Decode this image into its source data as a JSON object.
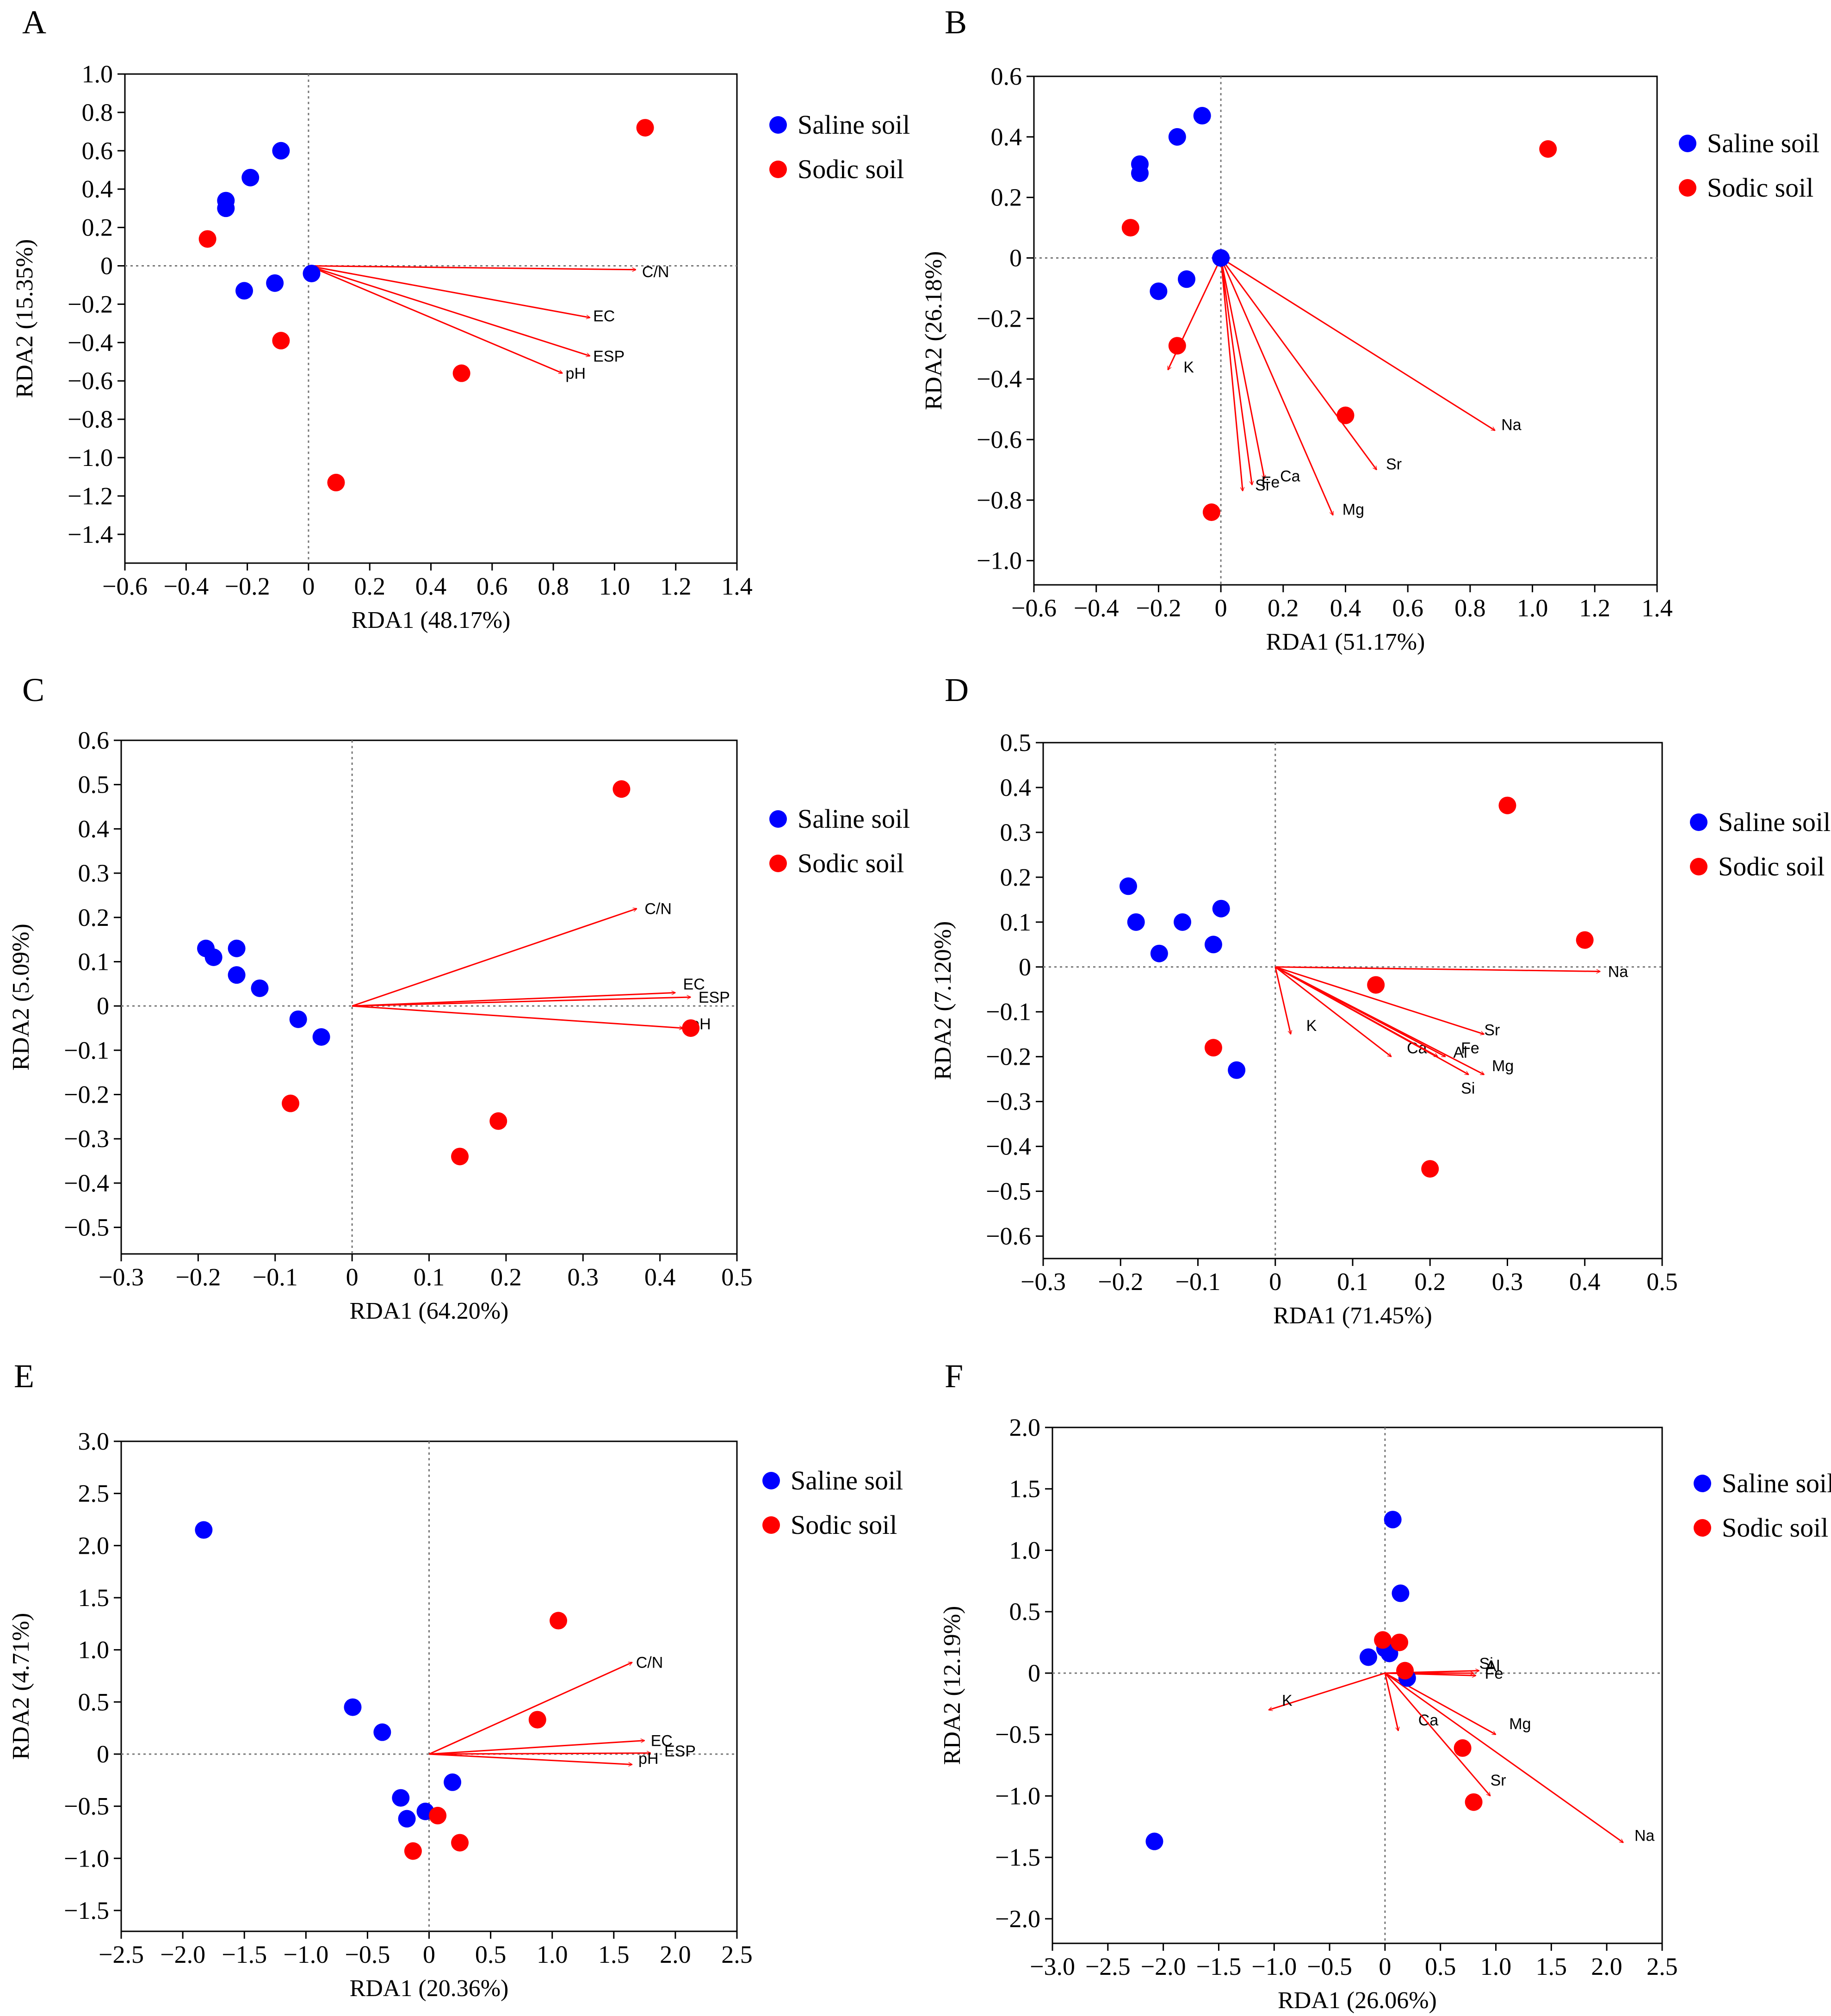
{
  "chart_data": [
    {
      "type": "scatter",
      "panel": "A",
      "xlabel": "RDA1 (48.17%)",
      "ylabel": "RDA2 (15.35%)",
      "xlim": [
        -0.6,
        1.4
      ],
      "ylim": [
        -1.55,
        1.0
      ],
      "xticks": [
        -0.6,
        -0.4,
        -0.2,
        0,
        0.2,
        0.4,
        0.6,
        0.8,
        1.0,
        1.2,
        1.4
      ],
      "xticklabels": [
        "−0.6",
        "−0.4",
        "−0.2",
        "0",
        "0.2",
        "0.4",
        "0.6",
        "0.8",
        "1.0",
        "1.2",
        "1.4"
      ],
      "yticks": [
        1.0,
        0.8,
        0.6,
        0.4,
        0.2,
        0,
        -0.2,
        -0.4,
        -0.6,
        -0.8,
        -1.0,
        -1.2,
        -1.4
      ],
      "yticklabels": [
        "1.0",
        "0.8",
        "0.6",
        "0.4",
        "0.2",
        "0",
        "−0.2",
        "−0.4",
        "−0.6",
        "−0.8",
        "−1.0",
        "−1.2",
        "−1.4"
      ],
      "legend": [
        "Saline soil",
        "Sodic soil"
      ],
      "series": [
        {
          "name": "Saline soil",
          "color": "#0000ff",
          "points": [
            [
              -0.09,
              0.6
            ],
            [
              -0.19,
              0.46
            ],
            [
              -0.27,
              0.34
            ],
            [
              -0.27,
              0.3
            ],
            [
              -0.21,
              -0.13
            ],
            [
              -0.11,
              -0.09
            ],
            [
              0.01,
              -0.04
            ]
          ]
        },
        {
          "name": "Sodic soil",
          "color": "#ff0000",
          "points": [
            [
              1.1,
              0.72
            ],
            [
              -0.33,
              0.14
            ],
            [
              -0.09,
              -0.39
            ],
            [
              0.5,
              -0.56
            ],
            [
              0.09,
              -1.13
            ]
          ]
        }
      ],
      "vectors": [
        {
          "name": "C/N",
          "x": 1.07,
          "y": -0.02,
          "lx": 1.09,
          "ly": -0.03
        },
        {
          "name": "EC",
          "x": 0.92,
          "y": -0.27,
          "lx": 0.93,
          "ly": -0.26
        },
        {
          "name": "ESP",
          "x": 0.92,
          "y": -0.47,
          "lx": 0.93,
          "ly": -0.47
        },
        {
          "name": "pH",
          "x": 0.83,
          "y": -0.56,
          "lx": 0.84,
          "ly": -0.56
        }
      ]
    },
    {
      "type": "scatter",
      "panel": "B",
      "xlabel": "RDA1 (51.17%)",
      "ylabel": "RDA2 (26.18%)",
      "xlim": [
        -0.6,
        1.4
      ],
      "ylim": [
        -1.08,
        0.6
      ],
      "xticks": [
        -0.6,
        -0.4,
        -0.2,
        0,
        0.2,
        0.4,
        0.6,
        0.8,
        1.0,
        1.2,
        1.4
      ],
      "xticklabels": [
        "−0.6",
        "−0.4",
        "−0.2",
        "0",
        "0.2",
        "0.4",
        "0.6",
        "0.8",
        "1.0",
        "1.2",
        "1.4"
      ],
      "yticks": [
        0.6,
        0.4,
        0.2,
        0,
        -0.2,
        -0.4,
        -0.6,
        -0.8,
        -1.0
      ],
      "yticklabels": [
        "0.6",
        "0.4",
        "0.2",
        "0",
        "−0.2",
        "−0.4",
        "−0.6",
        "−0.8",
        "−1.0"
      ],
      "legend": [
        "Saline soil",
        "Sodic soil"
      ],
      "series": [
        {
          "name": "Saline soil",
          "color": "#0000ff",
          "points": [
            [
              -0.06,
              0.47
            ],
            [
              -0.14,
              0.4
            ],
            [
              -0.26,
              0.31
            ],
            [
              -0.26,
              0.28
            ],
            [
              -0.2,
              -0.11
            ],
            [
              -0.11,
              -0.07
            ],
            [
              0.0,
              0.0
            ]
          ]
        },
        {
          "name": "Sodic soil",
          "color": "#ff0000",
          "points": [
            [
              1.05,
              0.36
            ],
            [
              -0.29,
              0.1
            ],
            [
              -0.14,
              -0.29
            ],
            [
              0.4,
              -0.52
            ],
            [
              -0.03,
              -0.84
            ]
          ]
        }
      ],
      "vectors": [
        {
          "name": "K",
          "x": -0.17,
          "y": -0.37,
          "lx": -0.12,
          "ly": -0.36
        },
        {
          "name": "Na",
          "x": 0.88,
          "y": -0.57,
          "lx": 0.9,
          "ly": -0.55
        },
        {
          "name": "Sr",
          "x": 0.5,
          "y": -0.7,
          "lx": 0.53,
          "ly": -0.68
        },
        {
          "name": "Mg",
          "x": 0.36,
          "y": -0.85,
          "lx": 0.39,
          "ly": -0.83
        },
        {
          "name": "Ca",
          "x": 0.14,
          "y": -0.73,
          "lx": 0.19,
          "ly": -0.72
        },
        {
          "name": "Fe",
          "x": 0.1,
          "y": -0.75,
          "lx": 0.13,
          "ly": -0.74
        },
        {
          "name": "Si",
          "x": 0.07,
          "y": -0.77,
          "lx": 0.11,
          "ly": -0.75
        }
      ]
    },
    {
      "type": "scatter",
      "panel": "C",
      "xlabel": "RDA1 (64.20%)",
      "ylabel": "RDA2 (5.09%)",
      "xlim": [
        -0.3,
        0.5
      ],
      "ylim": [
        -0.56,
        0.6
      ],
      "xticks": [
        -0.3,
        -0.2,
        -0.1,
        0,
        0.1,
        0.2,
        0.3,
        0.4,
        0.5
      ],
      "xticklabels": [
        "−0.3",
        "−0.2",
        "−0.1",
        "0",
        "0.1",
        "0.2",
        "0.3",
        "0.4",
        "0.5"
      ],
      "yticks": [
        0.6,
        0.5,
        0.4,
        0.3,
        0.2,
        0.1,
        0,
        -0.1,
        -0.2,
        -0.3,
        -0.4,
        -0.5
      ],
      "yticklabels": [
        "0.6",
        "0.5",
        "0.4",
        "0.3",
        "0.2",
        "0.1",
        "0",
        "−0.1",
        "−0.2",
        "−0.3",
        "−0.4",
        "−0.5"
      ],
      "legend": [
        "Saline soil",
        "Sodic soil"
      ],
      "series": [
        {
          "name": "Saline soil",
          "color": "#0000ff",
          "points": [
            [
              -0.19,
              0.13
            ],
            [
              -0.18,
              0.11
            ],
            [
              -0.15,
              0.13
            ],
            [
              -0.15,
              0.07
            ],
            [
              -0.12,
              0.04
            ],
            [
              -0.07,
              -0.03
            ],
            [
              -0.04,
              -0.07
            ]
          ]
        },
        {
          "name": "Sodic soil",
          "color": "#ff0000",
          "points": [
            [
              0.35,
              0.49
            ],
            [
              0.44,
              -0.05
            ],
            [
              0.19,
              -0.26
            ],
            [
              0.14,
              -0.34
            ],
            [
              -0.08,
              -0.22
            ]
          ]
        }
      ],
      "vectors": [
        {
          "name": "C/N",
          "x": 0.37,
          "y": 0.22,
          "lx": 0.38,
          "ly": 0.22
        },
        {
          "name": "EC",
          "x": 0.42,
          "y": 0.03,
          "lx": 0.43,
          "ly": 0.05
        },
        {
          "name": "ESP",
          "x": 0.44,
          "y": 0.02,
          "lx": 0.45,
          "ly": 0.02
        },
        {
          "name": "pH",
          "x": 0.43,
          "y": -0.05,
          "lx": 0.44,
          "ly": -0.04
        }
      ]
    },
    {
      "type": "scatter",
      "panel": "D",
      "xlabel": "RDA1 (71.45%)",
      "ylabel": "RDA2 (7.120%)",
      "xlim": [
        -0.3,
        0.5
      ],
      "ylim": [
        -0.65,
        0.5
      ],
      "xticks": [
        -0.3,
        -0.2,
        -0.1,
        0,
        0.1,
        0.2,
        0.3,
        0.4,
        0.5
      ],
      "xticklabels": [
        "−0.3",
        "−0.2",
        "−0.1",
        "0",
        "0.1",
        "0.2",
        "0.3",
        "0.4",
        "0.5"
      ],
      "yticks": [
        0.5,
        0.4,
        0.3,
        0.2,
        0.1,
        0,
        -0.1,
        -0.2,
        -0.3,
        -0.4,
        -0.5,
        -0.6
      ],
      "yticklabels": [
        "0.5",
        "0.4",
        "0.3",
        "0.2",
        "0.1",
        "0",
        "−0.1",
        "−0.2",
        "−0.3",
        "−0.4",
        "−0.5",
        "−0.6"
      ],
      "legend": [
        "Saline soil",
        "Sodic soil"
      ],
      "series": [
        {
          "name": "Saline soil",
          "color": "#0000ff",
          "points": [
            [
              -0.19,
              0.18
            ],
            [
              -0.18,
              0.1
            ],
            [
              -0.12,
              0.1
            ],
            [
              -0.07,
              0.13
            ],
            [
              -0.08,
              0.05
            ],
            [
              -0.15,
              0.03
            ],
            [
              -0.05,
              -0.23
            ]
          ]
        },
        {
          "name": "Sodic soil",
          "color": "#ff0000",
          "points": [
            [
              0.3,
              0.36
            ],
            [
              0.4,
              0.06
            ],
            [
              0.13,
              -0.04
            ],
            [
              -0.08,
              -0.18
            ],
            [
              0.2,
              -0.45
            ]
          ]
        }
      ],
      "vectors": [
        {
          "name": "Na",
          "x": 0.42,
          "y": -0.01,
          "lx": 0.43,
          "ly": -0.01
        },
        {
          "name": "K",
          "x": 0.02,
          "y": -0.15,
          "lx": 0.04,
          "ly": -0.13
        },
        {
          "name": "Sr",
          "x": 0.27,
          "y": -0.15,
          "lx": 0.27,
          "ly": -0.14
        },
        {
          "name": "Ca",
          "x": 0.15,
          "y": -0.2,
          "lx": 0.17,
          "ly": -0.18
        },
        {
          "name": "Al",
          "x": 0.21,
          "y": -0.2,
          "lx": 0.23,
          "ly": -0.19
        },
        {
          "name": "Fe",
          "x": 0.22,
          "y": -0.2,
          "lx": 0.24,
          "ly": -0.18
        },
        {
          "name": "Mg",
          "x": 0.27,
          "y": -0.24,
          "lx": 0.28,
          "ly": -0.22
        },
        {
          "name": "Si",
          "x": 0.25,
          "y": -0.24,
          "lx": 0.24,
          "ly": -0.27
        }
      ]
    },
    {
      "type": "scatter",
      "panel": "E",
      "xlabel": "RDA1 (20.36%)",
      "ylabel": "RDA2 (4.71%)",
      "xlim": [
        -2.5,
        2.5
      ],
      "ylim": [
        -1.7,
        3.0
      ],
      "xticks": [
        -2.5,
        -2.0,
        -1.5,
        -1.0,
        -0.5,
        0,
        0.5,
        1.0,
        1.5,
        2.0,
        2.5
      ],
      "xticklabels": [
        "−2.5",
        "−2.0",
        "−1.5",
        "−1.0",
        "−0.5",
        "0",
        "0.5",
        "1.0",
        "1.5",
        "2.0",
        "2.5"
      ],
      "yticks": [
        3.0,
        2.5,
        2.0,
        1.5,
        1.0,
        0.5,
        0,
        -0.5,
        -1.0,
        -1.5
      ],
      "yticklabels": [
        "3.0",
        "2.5",
        "2.0",
        "1.5",
        "1.0",
        "0.5",
        "0",
        "−0.5",
        "−1.0",
        "−1.5"
      ],
      "legend": [
        "Saline soil",
        "Sodic soil"
      ],
      "series": [
        {
          "name": "Saline soil",
          "color": "#0000ff",
          "points": [
            [
              -1.83,
              2.15
            ],
            [
              -0.62,
              0.45
            ],
            [
              -0.38,
              0.21
            ],
            [
              -0.23,
              -0.42
            ],
            [
              -0.18,
              -0.62
            ],
            [
              -0.03,
              -0.55
            ],
            [
              0.19,
              -0.27
            ]
          ]
        },
        {
          "name": "Sodic soil",
          "color": "#ff0000",
          "points": [
            [
              1.05,
              1.28
            ],
            [
              0.88,
              0.33
            ],
            [
              0.07,
              -0.59
            ],
            [
              0.25,
              -0.85
            ],
            [
              -0.13,
              -0.93
            ]
          ]
        }
      ],
      "vectors": [
        {
          "name": "C/N",
          "x": 1.65,
          "y": 0.88,
          "lx": 1.68,
          "ly": 0.88
        },
        {
          "name": "EC",
          "x": 1.75,
          "y": 0.13,
          "lx": 1.8,
          "ly": 0.13
        },
        {
          "name": "ESP",
          "x": 1.8,
          "y": 0.01,
          "lx": 1.91,
          "ly": 0.03
        },
        {
          "name": "pH",
          "x": 1.65,
          "y": -0.1,
          "lx": 1.7,
          "ly": -0.04
        }
      ]
    },
    {
      "type": "scatter",
      "panel": "F",
      "xlabel": "RDA1 (26.06%)",
      "ylabel": "RDA2 (12.19%)",
      "xlim": [
        -3.0,
        2.5
      ],
      "ylim": [
        -2.2,
        2.0
      ],
      "xticks": [
        -3.0,
        -2.5,
        -2.0,
        -1.5,
        -1.0,
        -0.5,
        0,
        0.5,
        1.0,
        1.5,
        2.0,
        2.5
      ],
      "xticklabels": [
        "−3.0",
        "−2.5",
        "−2.0",
        "−1.5",
        "−1.0",
        "−0.5",
        "0",
        "0.5",
        "1.0",
        "1.5",
        "2.0",
        "2.5"
      ],
      "yticks": [
        2.0,
        1.5,
        1.0,
        0.5,
        0,
        -0.5,
        -1.0,
        -1.5,
        -2.0
      ],
      "yticklabels": [
        "2.0",
        "1.5",
        "1.0",
        "0.5",
        "0",
        "−0.5",
        "−1.0",
        "−1.5",
        "−2.0"
      ],
      "legend": [
        "Saline soil",
        "Sodic soil"
      ],
      "series": [
        {
          "name": "Saline soil",
          "color": "#0000ff",
          "points": [
            [
              0.07,
              1.25
            ],
            [
              0.14,
              0.65
            ],
            [
              -0.15,
              0.13
            ],
            [
              0.0,
              0.2
            ],
            [
              0.04,
              0.16
            ],
            [
              0.2,
              -0.04
            ],
            [
              -2.08,
              -1.37
            ]
          ]
        },
        {
          "name": "Sodic soil",
          "color": "#ff0000",
          "points": [
            [
              -0.02,
              0.27
            ],
            [
              0.13,
              0.25
            ],
            [
              0.18,
              0.02
            ],
            [
              0.7,
              -0.61
            ],
            [
              0.8,
              -1.05
            ]
          ]
        }
      ],
      "vectors": [
        {
          "name": "K",
          "x": -1.05,
          "y": -0.3,
          "lx": -0.93,
          "ly": -0.22
        },
        {
          "name": "Ca",
          "x": 0.12,
          "y": -0.47,
          "lx": 0.3,
          "ly": -0.38
        },
        {
          "name": "Sr",
          "x": 0.95,
          "y": -1.0,
          "lx": 0.95,
          "ly": -0.87
        },
        {
          "name": "Na",
          "x": 2.15,
          "y": -1.38,
          "lx": 2.25,
          "ly": -1.32
        },
        {
          "name": "Mg",
          "x": 1.0,
          "y": -0.5,
          "lx": 1.12,
          "ly": -0.41
        },
        {
          "name": "Si",
          "x": 0.85,
          "y": 0.02,
          "lx": 0.85,
          "ly": 0.08
        },
        {
          "name": "Al",
          "x": 0.8,
          "y": 0.0,
          "lx": 0.91,
          "ly": 0.06
        },
        {
          "name": "Fe",
          "x": 0.82,
          "y": -0.02,
          "lx": 0.9,
          "ly": 0.0
        }
      ]
    }
  ]
}
